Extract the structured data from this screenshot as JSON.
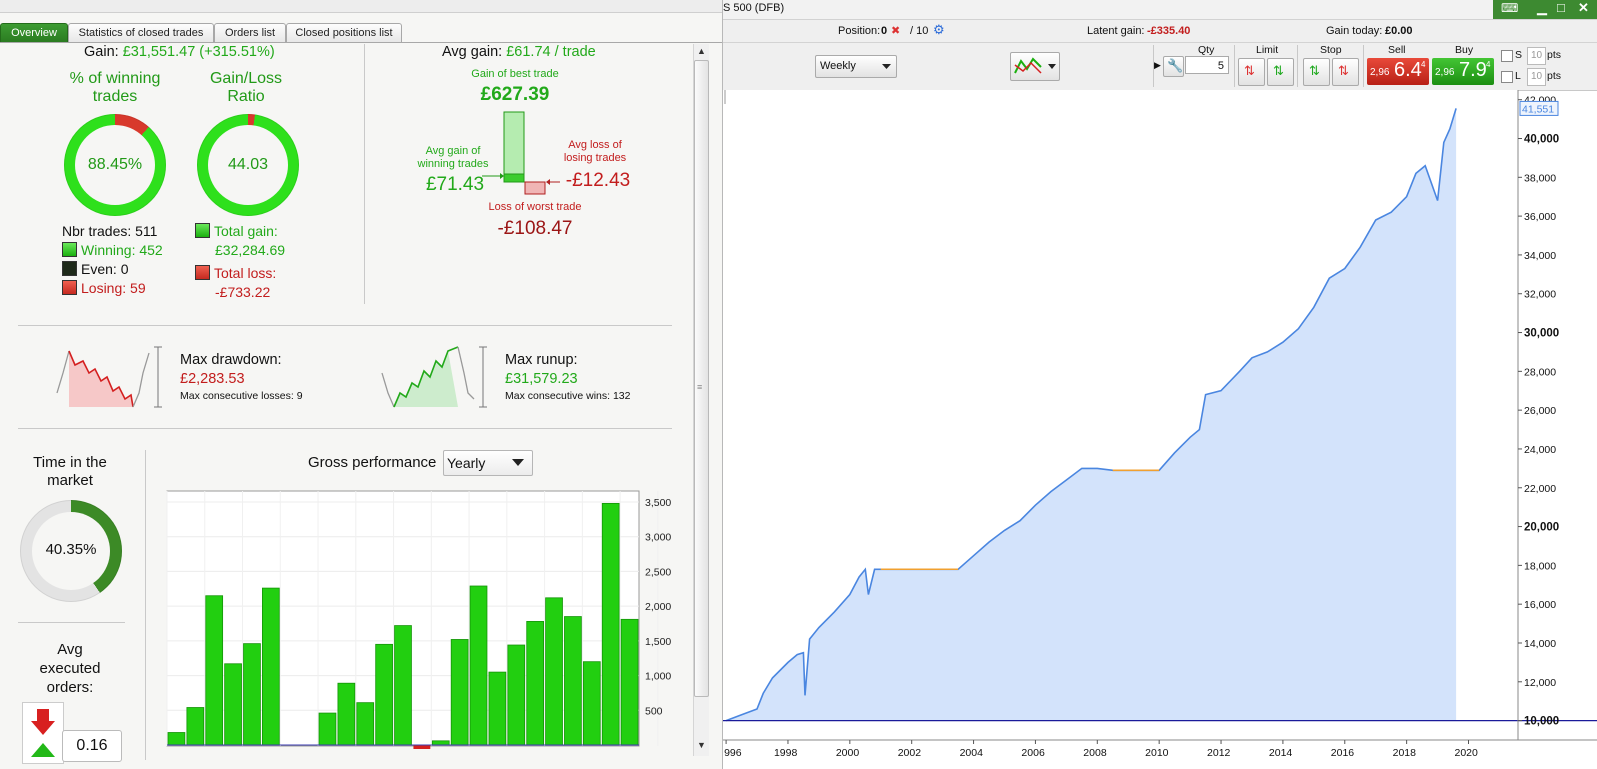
{
  "tabs": [
    "Overview",
    "Statistics of closed trades",
    "Orders list",
    "Closed positions list"
  ],
  "gain": {
    "label": "Gain:",
    "value": "£31,551.47 (+315.51%)"
  },
  "winning_ring": {
    "title_l1": "% of winning",
    "title_l2": "trades",
    "value": "88.45%",
    "fraction": 0.8845
  },
  "ratio_ring": {
    "title_l1": "Gain/Loss",
    "title_l2": "Ratio",
    "value": "44.03",
    "fraction": 0.978
  },
  "counts": {
    "nbr_trades": "Nbr trades: 511",
    "winning": "Winning: 452",
    "even": "Even: 0",
    "losing": "Losing: 59"
  },
  "totals": {
    "total_gain_label": "Total gain:",
    "total_gain_value": "£32,284.69",
    "total_loss_label": "Total loss:",
    "total_loss_value": "-£733.22"
  },
  "avg": {
    "title_label": "Avg gain:",
    "title_value": "£61.74 / trade",
    "best_label": "Gain of best trade",
    "best_value": "£627.39",
    "avg_win_l1": "Avg gain of",
    "avg_win_l2": "winning trades",
    "avg_win_value": "£71.43",
    "avg_loss_l1": "Avg loss of",
    "avg_loss_l2": "losing trades",
    "avg_loss_value": "-£12.43",
    "worst_label": "Loss of worst trade",
    "worst_value": "-£108.47"
  },
  "drawdown": {
    "label": "Max drawdown:",
    "value": "£2,283.53",
    "sub": "Max consecutive losses: 9"
  },
  "runup": {
    "label": "Max runup:",
    "value": "£31,579.23",
    "sub": "Max consecutive wins: 132"
  },
  "time_in_market": {
    "l1": "Time in the",
    "l2": "market",
    "value": "40.35%",
    "fraction": 0.4035
  },
  "avg_orders": {
    "l1": "Avg",
    "l2": "executed",
    "l3": "orders:",
    "value": "0.16"
  },
  "gross": {
    "label": "Gross performance",
    "select": "Yearly"
  },
  "right": {
    "title": "S 500 (DFB)",
    "position_label": "Position:",
    "position_value": "0",
    "position_qty": "/ 10",
    "latent_label": "Latent gain:",
    "latent_value": "-£335.40",
    "today_label": "Gain today:",
    "today_value": "£0.00",
    "timeframe": "Weekly",
    "qty_label": "Qty",
    "qty_value": "5",
    "limit_label": "Limit",
    "stop_label": "Stop",
    "sell_label": "Sell",
    "sell_small": "2,96",
    "sell_big": "6.4",
    "sell_sup": "4",
    "buy_label": "Buy",
    "buy_small": "2,96",
    "buy_big": "7.9",
    "buy_sup": "4",
    "s_label": "S",
    "l_label": "L",
    "pts_value": "10",
    "pts_label": "pts",
    "last_value_tag": "41,551"
  },
  "chart_data": [
    {
      "type": "bar",
      "title": "Gross performance",
      "ylim": [
        0,
        3500
      ],
      "y_ticks": [
        "500",
        "1,000",
        "1,500",
        "2,000",
        "2,500",
        "3,000",
        "3,500"
      ],
      "values": [
        180,
        540,
        2150,
        1170,
        1460,
        2260,
        0,
        0,
        460,
        890,
        610,
        1450,
        1720,
        -60,
        60,
        1520,
        2290,
        1050,
        1440,
        1780,
        2120,
        1850,
        1200,
        3480,
        1810
      ],
      "grid": true
    },
    {
      "type": "area",
      "x_ticks": [
        "996",
        "1998",
        "2000",
        "2002",
        "2004",
        "2006",
        "2008",
        "2010",
        "2012",
        "2014",
        "2016",
        "2018",
        "2020"
      ],
      "y_ticks": [
        "10,000",
        "12,000",
        "14,000",
        "16,000",
        "18,000",
        "20,000",
        "22,000",
        "24,000",
        "26,000",
        "28,000",
        "30,000",
        "32,000",
        "34,000",
        "36,000",
        "38,000",
        "40,000",
        "42,000"
      ],
      "bold_y_ticks": [
        "10,000",
        "20,000",
        "30,000",
        "40,000"
      ],
      "ylim": [
        9000,
        42500
      ],
      "xlim": [
        1995.9,
        2021.6
      ],
      "baseline": 10000,
      "x": [
        1996.0,
        1996.5,
        1997.0,
        1997.2,
        1997.5,
        1998.0,
        1998.3,
        1998.5,
        1998.55,
        1998.7,
        1999.0,
        1999.5,
        2000.0,
        2000.3,
        2000.5,
        2000.6,
        2000.8,
        2001.0,
        2002.0,
        2003.0,
        2003.5,
        2004.0,
        2004.5,
        2005.0,
        2005.5,
        2006.0,
        2006.5,
        2007.0,
        2007.5,
        2008.0,
        2008.5,
        2009.0,
        2009.5,
        2010.0,
        2010.5,
        2011.0,
        2011.3,
        2011.5,
        2012.0,
        2012.3,
        2012.6,
        2013.0,
        2013.5,
        2014.0,
        2014.5,
        2015.0,
        2015.5,
        2016.0,
        2016.5,
        2017.0,
        2017.5,
        2018.0,
        2018.3,
        2018.6,
        2019.0,
        2019.2,
        2019.4,
        2019.6
      ],
      "y": [
        10000,
        10300,
        10600,
        11400,
        12200,
        13000,
        13400,
        13500,
        11300,
        14200,
        14800,
        15600,
        16500,
        17400,
        17800,
        16500,
        17800,
        17800,
        17800,
        17800,
        17800,
        18500,
        19200,
        19800,
        20300,
        21100,
        21800,
        22400,
        23000,
        23000,
        22900,
        22900,
        22900,
        22900,
        23800,
        24600,
        25000,
        26800,
        27000,
        27500,
        28000,
        28700,
        29000,
        29500,
        30200,
        31300,
        32800,
        33300,
        34400,
        35800,
        36200,
        37000,
        38200,
        38600,
        36800,
        39800,
        40500,
        41551
      ],
      "grid": false
    }
  ]
}
